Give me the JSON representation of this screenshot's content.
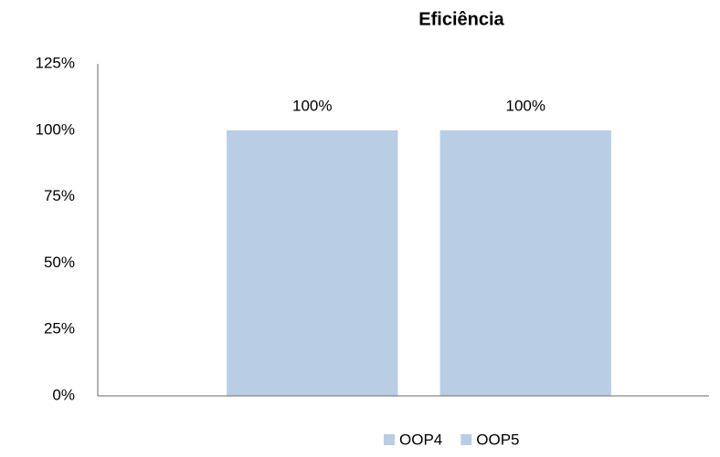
{
  "chart_data": {
    "type": "bar",
    "title": "Eficiência",
    "categories": [
      null
    ],
    "series": [
      {
        "name": "OOP4",
        "color": "#b9cde5",
        "values": [
          100
        ],
        "value_labels": [
          "100%"
        ]
      },
      {
        "name": "OOP5",
        "color": "#b9cde5",
        "values": [
          100
        ],
        "value_labels": [
          "100%"
        ]
      }
    ],
    "ylim": [
      0,
      125
    ],
    "yticks": [
      {
        "value": 0,
        "label": "0%"
      },
      {
        "value": 25,
        "label": "25%"
      },
      {
        "value": 50,
        "label": "50%"
      },
      {
        "value": 75,
        "label": "75%"
      },
      {
        "value": 100,
        "label": "100%"
      },
      {
        "value": 125,
        "label": "125%"
      }
    ],
    "grid": false,
    "legend": "bottom"
  }
}
